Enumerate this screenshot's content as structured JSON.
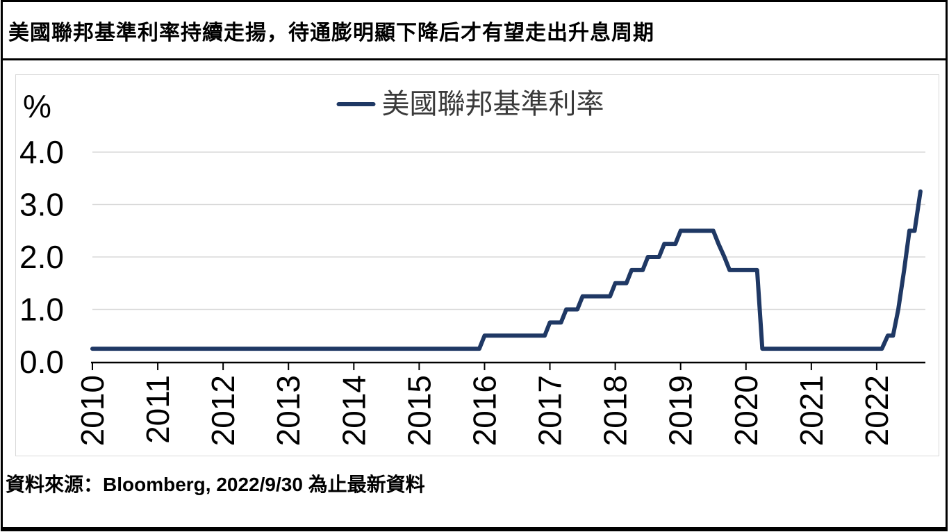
{
  "chart_data": {
    "type": "line",
    "title": "美國聯邦基準利率持續走揚，待通膨明顯下降后才有望走出升息周期",
    "source": "資料來源：Bloomberg, 2022/9/30 為止最新資料",
    "unit_label": "%",
    "legend": {
      "label": "美國聯邦基準利率",
      "position": "top-center"
    },
    "grid": "horizontal",
    "xlim": [
      2010,
      2022.745
    ],
    "ylim": [
      0,
      4.4
    ],
    "yticks": [
      0,
      1,
      2,
      3,
      4
    ],
    "ytick_labels": [
      "0.0",
      "1.0",
      "2.0",
      "3.0",
      "4.0"
    ],
    "xticks": [
      2010,
      2011,
      2012,
      2013,
      2014,
      2015,
      2016,
      2017,
      2018,
      2019,
      2020,
      2021,
      2022
    ],
    "xtick_labels": [
      "2010",
      "2011",
      "2012",
      "2013",
      "2014",
      "2015",
      "2016",
      "2017",
      "2018",
      "2019",
      "2020",
      "2021",
      "2022"
    ],
    "colors": {
      "line": "#1f3864",
      "grid": "#d9d9d9",
      "axis": "#000000",
      "tick_text": "#000000",
      "legend_text": "#3a3a3a"
    },
    "series": [
      {
        "name": "美國聯邦基準利率",
        "color": "#1f3864",
        "points": [
          [
            2010.0,
            0.25
          ],
          [
            2015.92,
            0.25
          ],
          [
            2016.0,
            0.5
          ],
          [
            2016.92,
            0.5
          ],
          [
            2017.0,
            0.75
          ],
          [
            2017.17,
            0.75
          ],
          [
            2017.25,
            1.0
          ],
          [
            2017.42,
            1.0
          ],
          [
            2017.5,
            1.25
          ],
          [
            2017.92,
            1.25
          ],
          [
            2018.0,
            1.5
          ],
          [
            2018.17,
            1.5
          ],
          [
            2018.25,
            1.75
          ],
          [
            2018.42,
            1.75
          ],
          [
            2018.5,
            2.0
          ],
          [
            2018.67,
            2.0
          ],
          [
            2018.75,
            2.25
          ],
          [
            2018.92,
            2.25
          ],
          [
            2019.0,
            2.5
          ],
          [
            2019.5,
            2.5
          ],
          [
            2019.58,
            2.25
          ],
          [
            2019.67,
            2.0
          ],
          [
            2019.75,
            1.75
          ],
          [
            2020.17,
            1.75
          ],
          [
            2020.25,
            0.25
          ],
          [
            2022.08,
            0.25
          ],
          [
            2022.17,
            0.5
          ],
          [
            2022.25,
            0.5
          ],
          [
            2022.33,
            1.0
          ],
          [
            2022.42,
            1.75
          ],
          [
            2022.5,
            2.5
          ],
          [
            2022.58,
            2.5
          ],
          [
            2022.67,
            3.25
          ]
        ]
      }
    ]
  }
}
